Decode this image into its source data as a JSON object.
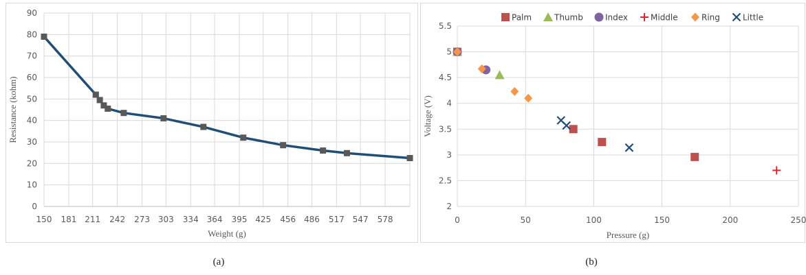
{
  "chart_data": [
    {
      "type": "line",
      "xlabel": "Weight (g)",
      "ylabel": "Resistance (kohm)",
      "xlim": [
        150,
        609
      ],
      "ylim": [
        0,
        90
      ],
      "x_ticks": [
        150,
        181,
        211,
        242,
        273,
        303,
        334,
        364,
        395,
        425,
        456,
        486,
        517,
        547,
        578
      ],
      "y_ticks": [
        0,
        10,
        20,
        30,
        40,
        50,
        60,
        70,
        80,
        90
      ],
      "grid": true,
      "series": [
        {
          "color": "#1f4e79",
          "marker_color": "#595959",
          "points": [
            {
              "x": 150,
              "y": 79
            },
            {
              "x": 215,
              "y": 52
            },
            {
              "x": 220,
              "y": 49.5
            },
            {
              "x": 225,
              "y": 47
            },
            {
              "x": 230,
              "y": 45.5
            },
            {
              "x": 250,
              "y": 43.5
            },
            {
              "x": 300,
              "y": 41
            },
            {
              "x": 350,
              "y": 37
            },
            {
              "x": 400,
              "y": 32
            },
            {
              "x": 450,
              "y": 28.5
            },
            {
              "x": 500,
              "y": 26
            },
            {
              "x": 530,
              "y": 24.8
            },
            {
              "x": 609,
              "y": 22.5
            }
          ]
        }
      ],
      "caption": "(a)"
    },
    {
      "type": "scatter",
      "xlabel": "Pressure (g)",
      "ylabel": "Voltage (V)",
      "xlim": [
        0,
        250
      ],
      "ylim": [
        2,
        5.5
      ],
      "x_ticks": [
        0,
        50,
        100,
        150,
        200,
        250
      ],
      "y_ticks": [
        2,
        2.5,
        3,
        3.5,
        4,
        4.5,
        5,
        5.5
      ],
      "grid": true,
      "legend_position": "top",
      "series": [
        {
          "name": "Palm",
          "marker": "square",
          "color": "#c0504d",
          "points": [
            {
              "x": 0,
              "y": 5
            },
            {
              "x": 85,
              "y": 3.5
            },
            {
              "x": 106,
              "y": 3.25
            },
            {
              "x": 174,
              "y": 2.96
            }
          ]
        },
        {
          "name": "Thumb",
          "marker": "triangle",
          "color": "#9bbb59",
          "points": [
            {
              "x": 0,
              "y": 5
            },
            {
              "x": 31,
              "y": 4.55
            }
          ]
        },
        {
          "name": "Index",
          "marker": "circle",
          "color": "#8064a2",
          "points": [
            {
              "x": 0,
              "y": 5
            },
            {
              "x": 21,
              "y": 4.65
            }
          ]
        },
        {
          "name": "Middle",
          "marker": "plus",
          "color": "#e8242a",
          "points": [
            {
              "x": 0,
              "y": 5
            },
            {
              "x": 234,
              "y": 2.7
            }
          ]
        },
        {
          "name": "Ring",
          "marker": "diamond",
          "color": "#f79646",
          "points": [
            {
              "x": 0,
              "y": 5
            },
            {
              "x": 18,
              "y": 4.67
            },
            {
              "x": 42,
              "y": 4.23
            },
            {
              "x": 52,
              "y": 4.1
            }
          ]
        },
        {
          "name": "Little",
          "marker": "x",
          "color": "#1f4e79",
          "points": [
            {
              "x": 76,
              "y": 3.67
            },
            {
              "x": 80,
              "y": 3.57
            },
            {
              "x": 126,
              "y": 3.14
            }
          ]
        }
      ],
      "caption": "(b)"
    }
  ],
  "captions": {
    "a": "(a)",
    "b": "(b)"
  }
}
